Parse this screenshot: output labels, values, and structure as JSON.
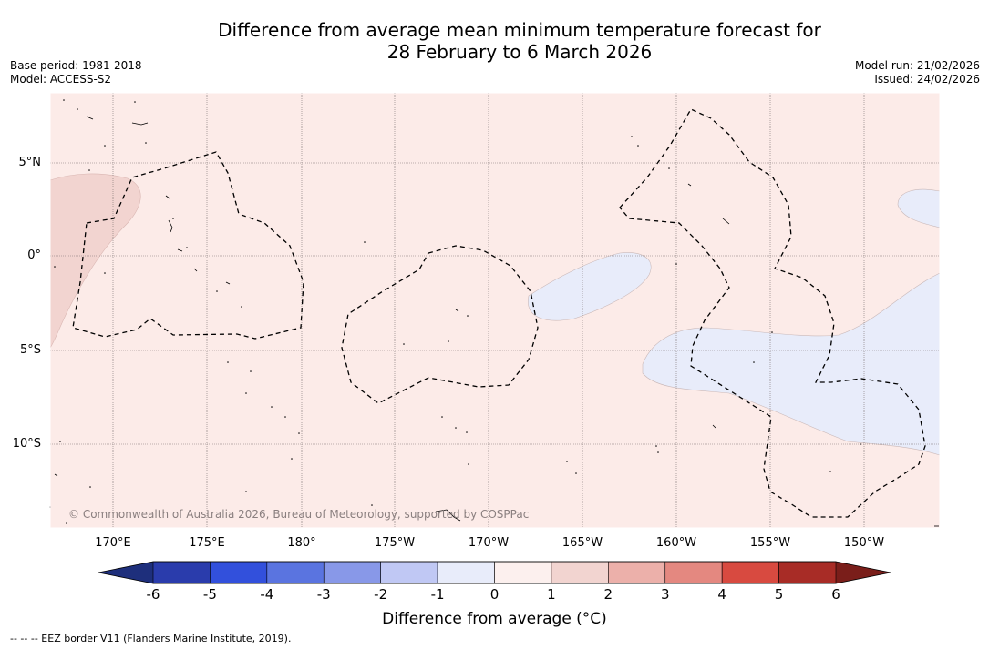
{
  "title_line1": "Difference from average mean minimum temperature forecast for",
  "title_line2": "28 February to 6 March 2026",
  "base_period": "Base period: 1981-2018",
  "model": "Model: ACCESS-S2",
  "model_run": "Model run: 21/02/2026",
  "issued": "Issued: 24/02/2026",
  "lat_labels": [
    "5°N",
    "0°",
    "5°S",
    "10°S"
  ],
  "lon_labels": [
    "170°E",
    "175°E",
    "180°",
    "175°W",
    "170°W",
    "165°W",
    "160°W",
    "155°W",
    "150°W"
  ],
  "copyright": "© Commonwealth of Australia 2026, Bureau of Meteorology, supported by COSPPac",
  "colorbar": {
    "ticks": [
      "-6",
      "-5",
      "-4",
      "-3",
      "-2",
      "-1",
      "0",
      "1",
      "2",
      "3",
      "4",
      "5",
      "6"
    ],
    "colors": [
      "#2a3cac",
      "#3250dc",
      "#5a74e0",
      "#8898e8",
      "#c0c8f4",
      "#e8ecfa",
      "#fcf0ee",
      "#f2d4d0",
      "#ecb0aa",
      "#e48880",
      "#d84a40",
      "#a82c26"
    ],
    "low_extend": "#1e2f7c",
    "high_extend": "#7a1e1a",
    "title": "Difference from average (°C)"
  },
  "footnote": "--  --  -- EEZ border V11 (Flanders Marine Institute, 2019)."
}
